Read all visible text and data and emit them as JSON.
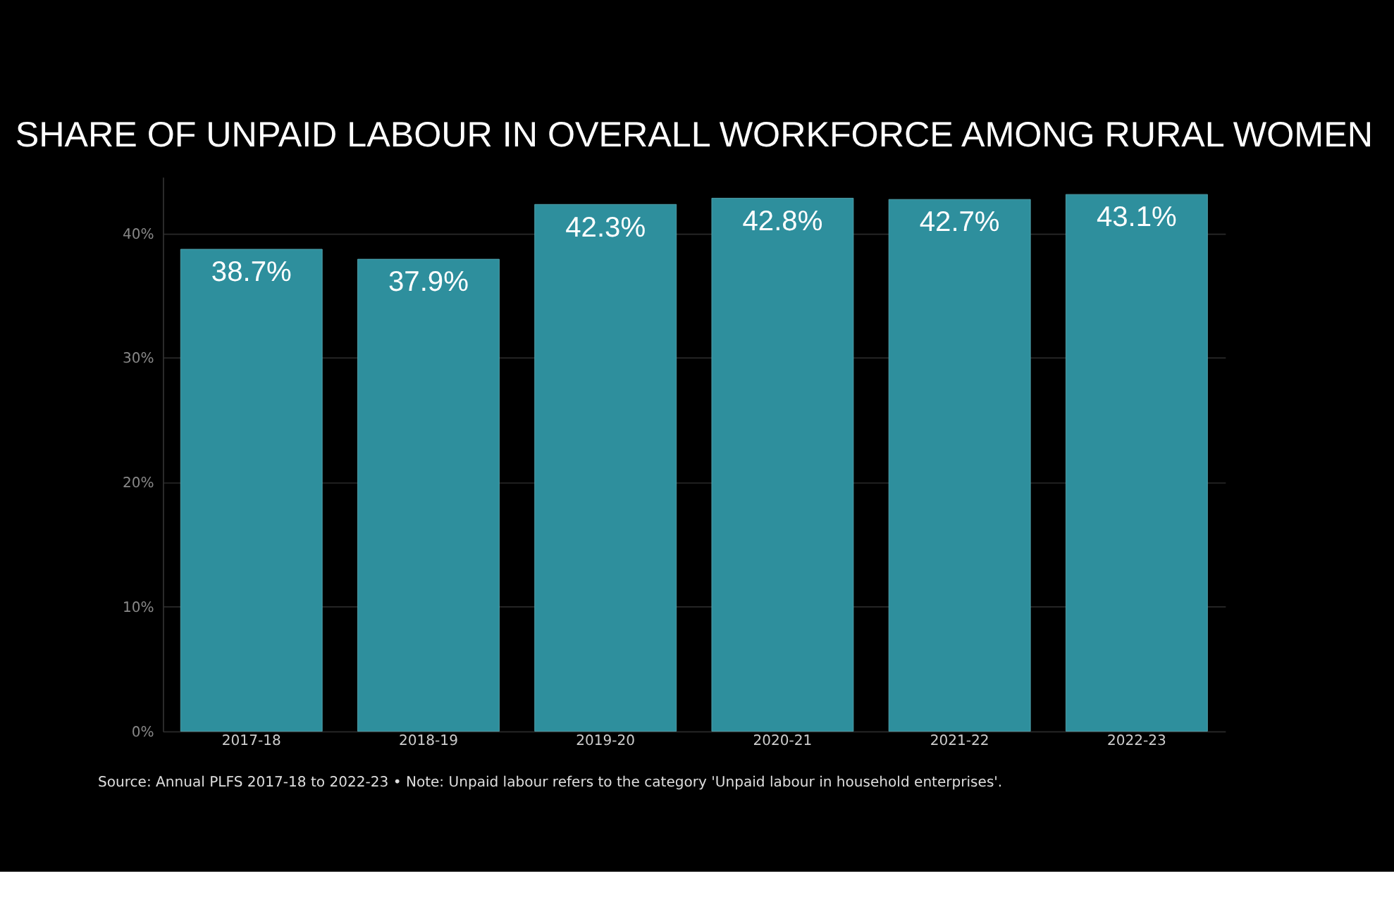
{
  "chart_data": {
    "type": "bar",
    "title": "SHARE OF UNPAID LABOUR IN OVERALL WORKFORCE AMONG RURAL WOMEN",
    "categories": [
      "2017-18",
      "2018-19",
      "2019-20",
      "2020-21",
      "2021-22",
      "2022-23"
    ],
    "values": [
      38.7,
      37.9,
      42.3,
      42.8,
      42.7,
      43.1
    ],
    "value_labels": [
      "38.7%",
      "37.9%",
      "42.3%",
      "42.8%",
      "42.7%",
      "43.1%"
    ],
    "color": "#2e8f9d",
    "ylim": [
      0,
      44.5
    ],
    "yticks": [
      {
        "value": 0,
        "label": "0%"
      },
      {
        "value": 10,
        "label": "10%"
      },
      {
        "value": 20,
        "label": "20%"
      },
      {
        "value": 30,
        "label": "30%"
      },
      {
        "value": 40,
        "label": "40%"
      }
    ],
    "grid": "y",
    "annotations": [
      "Source: Annual PLFS 2017-18 to 2022-23 • Note: Unpaid labour refers to the category 'Unpaid labour in household enterprises'."
    ]
  }
}
